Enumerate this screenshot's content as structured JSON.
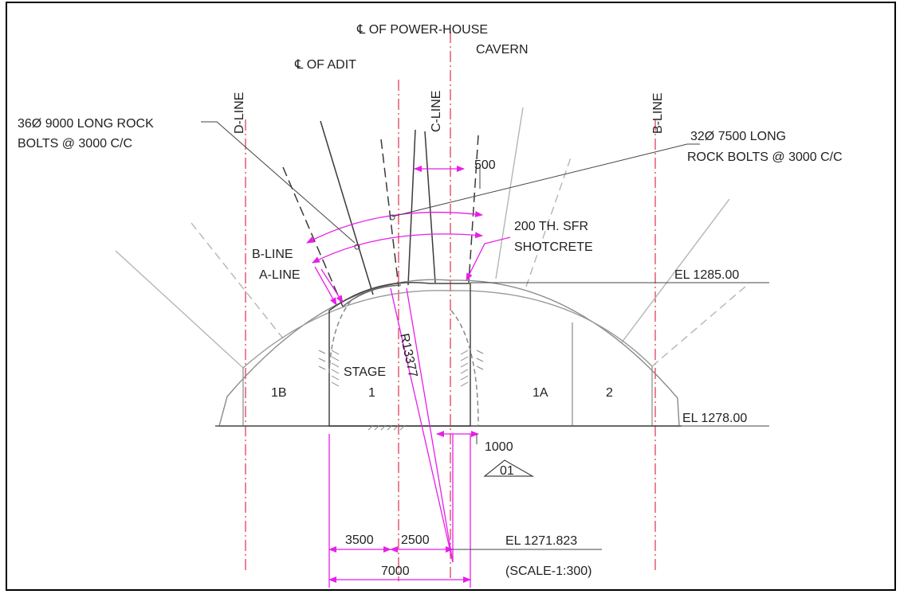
{
  "labels": {
    "cl_powerhouse_1": "℄ OF POWER-HOUSE",
    "cl_powerhouse_2": "CAVERN",
    "cl_adit": "℄ OF ADIT",
    "d_line": "D-LINE",
    "c_line": "C-LINE",
    "b_line_right": "B-LINE",
    "bolts_left_1": "36Ø 9000 LONG ROCK",
    "bolts_left_2": "BOLTS @ 3000 C/C",
    "bolts_right_1": "32Ø 7500 LONG",
    "bolts_right_2": "ROCK BOLTS @ 3000 C/C",
    "dim_500": "500",
    "shotcrete_1": "200 TH. SFR",
    "shotcrete_2": "SHOTCRETE",
    "b_line_left": "B-LINE",
    "a_line": "A-LINE",
    "el_top": "EL 1285.00",
    "el_floor": "EL 1278.00",
    "el_center": "EL 1271.823",
    "radius": "R13377",
    "stage_1": "STAGE",
    "stage_1_num": "1",
    "zone_1b": "1B",
    "zone_1a": "1A",
    "zone_2": "2",
    "dim_1000": "1000",
    "section_mark": "01",
    "dim_3500": "3500",
    "dim_2500": "2500",
    "dim_7000": "7000",
    "scale": "(SCALE-1:300)"
  },
  "colors": {
    "centerline": "#e0405a",
    "magenta": "#e81ee8",
    "outline": "#9a9a9a",
    "dark": "#3a3a3a",
    "text": "#222222"
  }
}
